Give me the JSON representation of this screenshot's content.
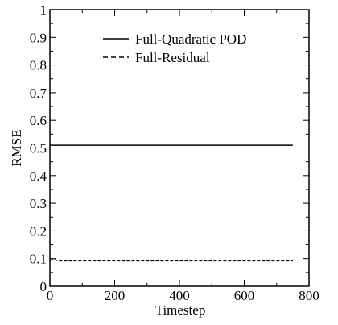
{
  "chart_data": {
    "type": "line",
    "xlabel": "Timestep",
    "ylabel": "RMSE",
    "xlim": [
      0,
      800
    ],
    "ylim": [
      0,
      1
    ],
    "x_ticks": [
      0,
      200,
      400,
      600,
      800
    ],
    "x_tick_labels": [
      "0",
      "200",
      "400",
      "600",
      "800"
    ],
    "y_ticks": [
      0,
      0.1,
      0.2,
      0.3,
      0.4,
      0.5,
      0.6,
      0.7,
      0.8,
      0.9,
      1
    ],
    "y_tick_labels": [
      "0",
      "0.1",
      "0.2",
      "0.3",
      "0.4",
      "0.5",
      "0.6",
      "0.7",
      "0.8",
      "0.9",
      "1"
    ],
    "grid": false,
    "legend_position": "top-center",
    "series": [
      {
        "name": "Full-Quadratic POD",
        "style": "solid",
        "color": "#000000",
        "x": [
          0,
          100,
          200,
          300,
          400,
          500,
          600,
          700,
          750
        ],
        "y": [
          0.51,
          0.51,
          0.51,
          0.51,
          0.51,
          0.51,
          0.51,
          0.51,
          0.51
        ]
      },
      {
        "name": "Full-Residual",
        "style": "dashed",
        "color": "#000000",
        "x": [
          0,
          5,
          10,
          15,
          20,
          25,
          30,
          50,
          100,
          200,
          300,
          400,
          500,
          600,
          700,
          750
        ],
        "y": [
          0.093,
          0.096,
          0.098,
          0.096,
          0.094,
          0.093,
          0.092,
          0.092,
          0.092,
          0.092,
          0.092,
          0.092,
          0.092,
          0.092,
          0.092,
          0.092
        ]
      }
    ]
  }
}
